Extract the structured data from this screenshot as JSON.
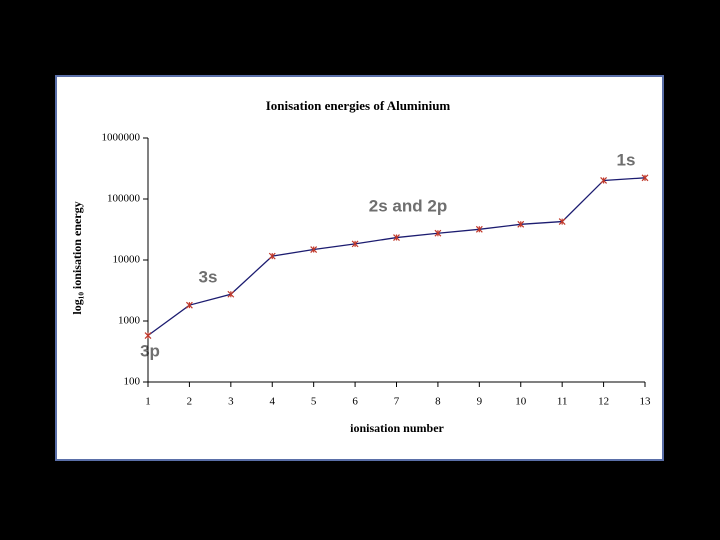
{
  "chart_data": {
    "type": "line",
    "title": "Ionisation energies of Aluminium",
    "x_label": "ionisation number",
    "y_label": "log₁₀ ionisation energy",
    "x": [
      1,
      2,
      3,
      4,
      5,
      6,
      7,
      8,
      9,
      10,
      11,
      12,
      13
    ],
    "series": [
      {
        "name": "Aluminium",
        "color": "#1c1c70",
        "marker_color": "#c0392b",
        "values": [
          578,
          1817,
          2745,
          11577,
          14842,
          18379,
          23326,
          27465,
          31853,
          38473,
          42647,
          201266,
          222316
        ]
      }
    ],
    "xlim": [
      1,
      13
    ],
    "xticks": [
      1,
      2,
      3,
      4,
      5,
      6,
      7,
      8,
      9,
      10,
      11,
      12,
      13
    ],
    "ylim": [
      100,
      1000000
    ],
    "yticks": [
      100,
      1000,
      10000,
      100000,
      1000000
    ],
    "log_scale": true,
    "grid": false,
    "annotations": [
      "1s",
      "2s and 2p",
      "3s",
      "3p"
    ]
  }
}
